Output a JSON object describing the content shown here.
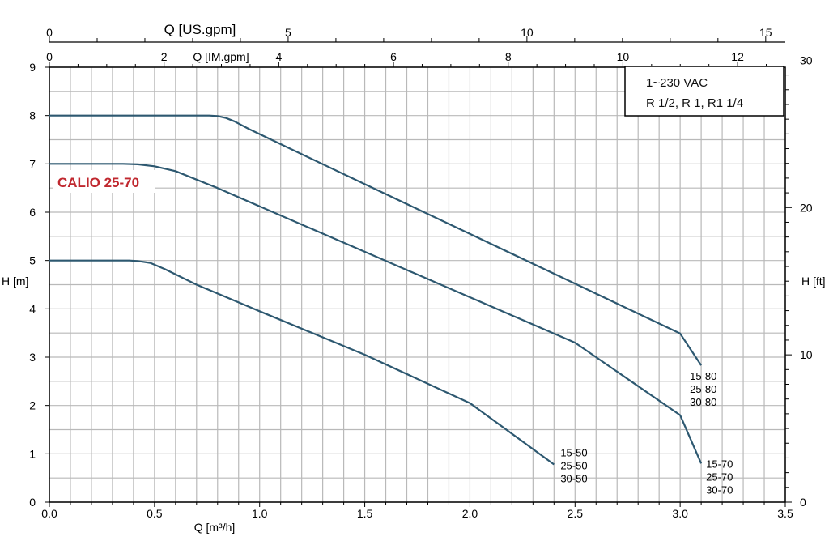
{
  "chart_data": {
    "type": "line",
    "xlabel": "Q [m³/h]",
    "ylabel_left": "H [m]",
    "ylabel_right": "H [ft]",
    "top_axis_label": "Q [US.gpm]",
    "second_top_axis_label": "Q [IM.gpm]",
    "xlim": [
      0,
      3.5
    ],
    "ylim": [
      0,
      9
    ],
    "x_ticks": [
      "0.0",
      "0.5",
      "1.0",
      "1.5",
      "2.0",
      "2.5",
      "3.0",
      "3.5"
    ],
    "y_ticks": [
      "0",
      "1",
      "2",
      "3",
      "4",
      "5",
      "6",
      "7",
      "8",
      "9"
    ],
    "right_ticks": [
      "0",
      "10",
      "20",
      "30"
    ],
    "us_gpm_ticks": [
      "0",
      "5",
      "10",
      "15"
    ],
    "im_gpm_ticks": [
      "0",
      "2",
      "4",
      "6",
      "8",
      "10",
      "12"
    ],
    "grid": true,
    "series": [
      {
        "name_lines": [
          "15-80",
          "25-80",
          "30-80"
        ],
        "color": "#2d5870",
        "x": [
          0.0,
          0.3,
          0.6,
          0.76,
          0.8,
          0.84,
          0.88,
          0.95,
          1.2,
          1.5,
          2.0,
          2.5,
          3.0,
          3.1
        ],
        "y": [
          8.0,
          8.0,
          8.0,
          8.0,
          7.99,
          7.95,
          7.88,
          7.72,
          7.2,
          6.58,
          5.55,
          4.52,
          3.49,
          2.83
        ]
      },
      {
        "name_lines": [
          "15-70",
          "25-70",
          "30-70"
        ],
        "color": "#2d5870",
        "x": [
          0.0,
          0.2,
          0.35,
          0.42,
          0.5,
          0.6,
          0.8,
          1.0,
          1.5,
          2.0,
          2.5,
          3.0,
          3.1
        ],
        "y": [
          7.0,
          7.0,
          7.0,
          6.99,
          6.95,
          6.85,
          6.5,
          6.12,
          5.18,
          4.24,
          3.3,
          1.8,
          0.8
        ]
      },
      {
        "name_lines": [
          "15-50",
          "25-50",
          "30-50"
        ],
        "color": "#2d5870",
        "x": [
          0.0,
          0.2,
          0.38,
          0.42,
          0.48,
          0.55,
          0.7,
          1.0,
          1.5,
          2.0,
          2.4
        ],
        "y": [
          5.0,
          5.0,
          5.0,
          4.99,
          4.95,
          4.82,
          4.5,
          3.95,
          3.05,
          2.05,
          0.78
        ]
      }
    ],
    "info_box": [
      "1~230 VAC",
      "R 1/2, R 1, R1 1/4"
    ],
    "brand_label": "CALIO 25-70",
    "colors": {
      "curve": "#2d5870",
      "grid": "#b9b9b9",
      "brand": "#c0282f"
    }
  }
}
